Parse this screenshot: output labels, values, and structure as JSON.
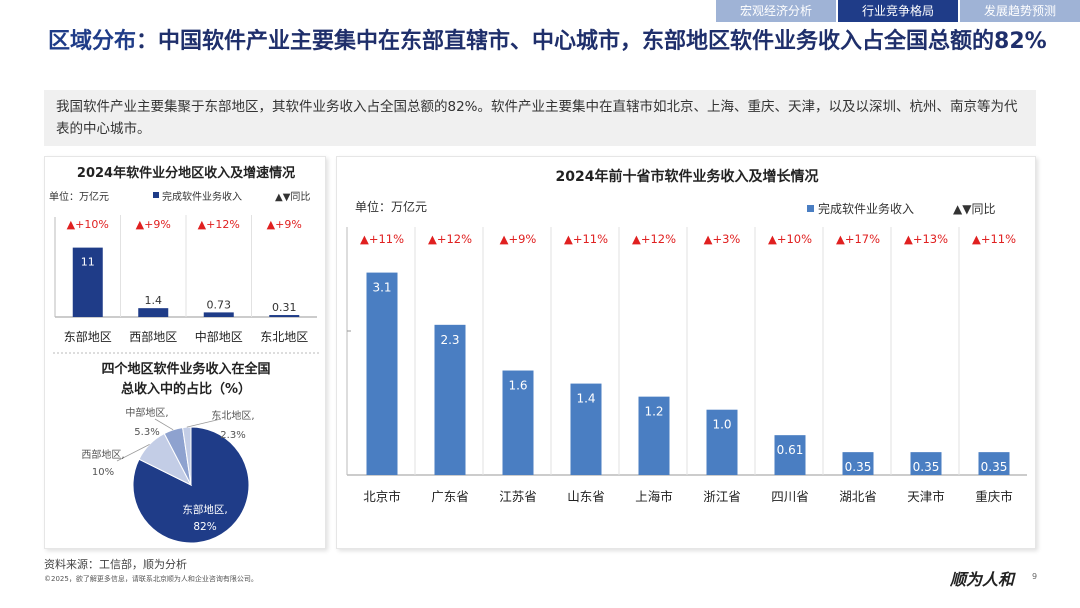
{
  "nav": {
    "tabs": [
      {
        "label": "宏观经济分析",
        "active": false
      },
      {
        "label": "行业竞争格局",
        "active": true
      },
      {
        "label": "发展趋势预测",
        "active": false
      }
    ]
  },
  "headline": {
    "key": "区域分布",
    "rest": "：中国软件产业主要集中在东部直辖市、中心城市，东部地区软件业务收入占全国总额的82%"
  },
  "summary": "我国软件产业主要集聚于东部地区，其软件业务收入占全国总额的82%。软件产业主要集中在直辖市如北京、上海、重庆、天津，以及以深圳、杭州、南京等为代表的中心城市。",
  "colors": {
    "bar_light": "#4a7ec2",
    "bar_dark": "#1f3c88",
    "growth": "#e02020",
    "pie_dark": "#1f3c88",
    "pie_mid": "#8ea2cf",
    "pie_light": "#c3cde6"
  },
  "chart_data": [
    {
      "type": "bar",
      "title": "2024年软件业分地区收入及增速情况",
      "unit": "单位：万亿元",
      "legend_bar": "完成软件业务收入",
      "legend_growth": "▲▼同比",
      "categories": [
        "东部地区",
        "西部地区",
        "中部地区",
        "东北地区"
      ],
      "values": [
        11,
        1.4,
        0.73,
        0.31
      ],
      "value_labels": [
        "11",
        "1.4",
        "0.73",
        "0.31"
      ],
      "growth_labels": [
        "▲+10%",
        "▲+9%",
        "▲+12%",
        "▲+9%"
      ],
      "ylim": [
        0,
        13
      ]
    },
    {
      "type": "pie",
      "title": "四个地区软件业务收入在全国总收入中的占比（%）",
      "slices": [
        {
          "name": "东部地区,",
          "value": 82,
          "label": "82%"
        },
        {
          "name": "西部地区,",
          "value": 10,
          "label": "10%"
        },
        {
          "name": "中部地区,",
          "value": 5.3,
          "label": "5.3%"
        },
        {
          "name": "东北地区,",
          "value": 2.3,
          "label": "2.3%"
        }
      ]
    },
    {
      "type": "bar",
      "title": "2024年前十省市软件业务收入及增长情况",
      "unit": "单位：万亿元",
      "legend_bar": "完成软件业务收入",
      "legend_growth": "▲▼同比",
      "categories": [
        "北京市",
        "广东省",
        "江苏省",
        "山东省",
        "上海市",
        "浙江省",
        "四川省",
        "湖北省",
        "天津市",
        "重庆市"
      ],
      "values": [
        3.1,
        2.3,
        1.6,
        1.4,
        1.2,
        1.0,
        0.61,
        0.35,
        0.35,
        0.35
      ],
      "value_labels": [
        "3.1",
        "2.3",
        "1.6",
        "1.4",
        "1.2",
        "1.0",
        "0.61",
        "0.35",
        "0.35",
        "0.35"
      ],
      "growth_labels": [
        "▲+11%",
        "▲+12%",
        "▲+9%",
        "▲+11%",
        "▲+12%",
        "▲+3%",
        "▲+10%",
        "▲+17%",
        "▲+13%",
        "▲+11%"
      ],
      "ylim": [
        0,
        3.4
      ]
    }
  ],
  "footer": {
    "source": "资料来源：工信部，顺为分析",
    "copyright": "©2025，欲了解更多信息，请联系北京顺为人和企业咨询有限公司。",
    "brand": "顺为人和",
    "page": "9"
  }
}
